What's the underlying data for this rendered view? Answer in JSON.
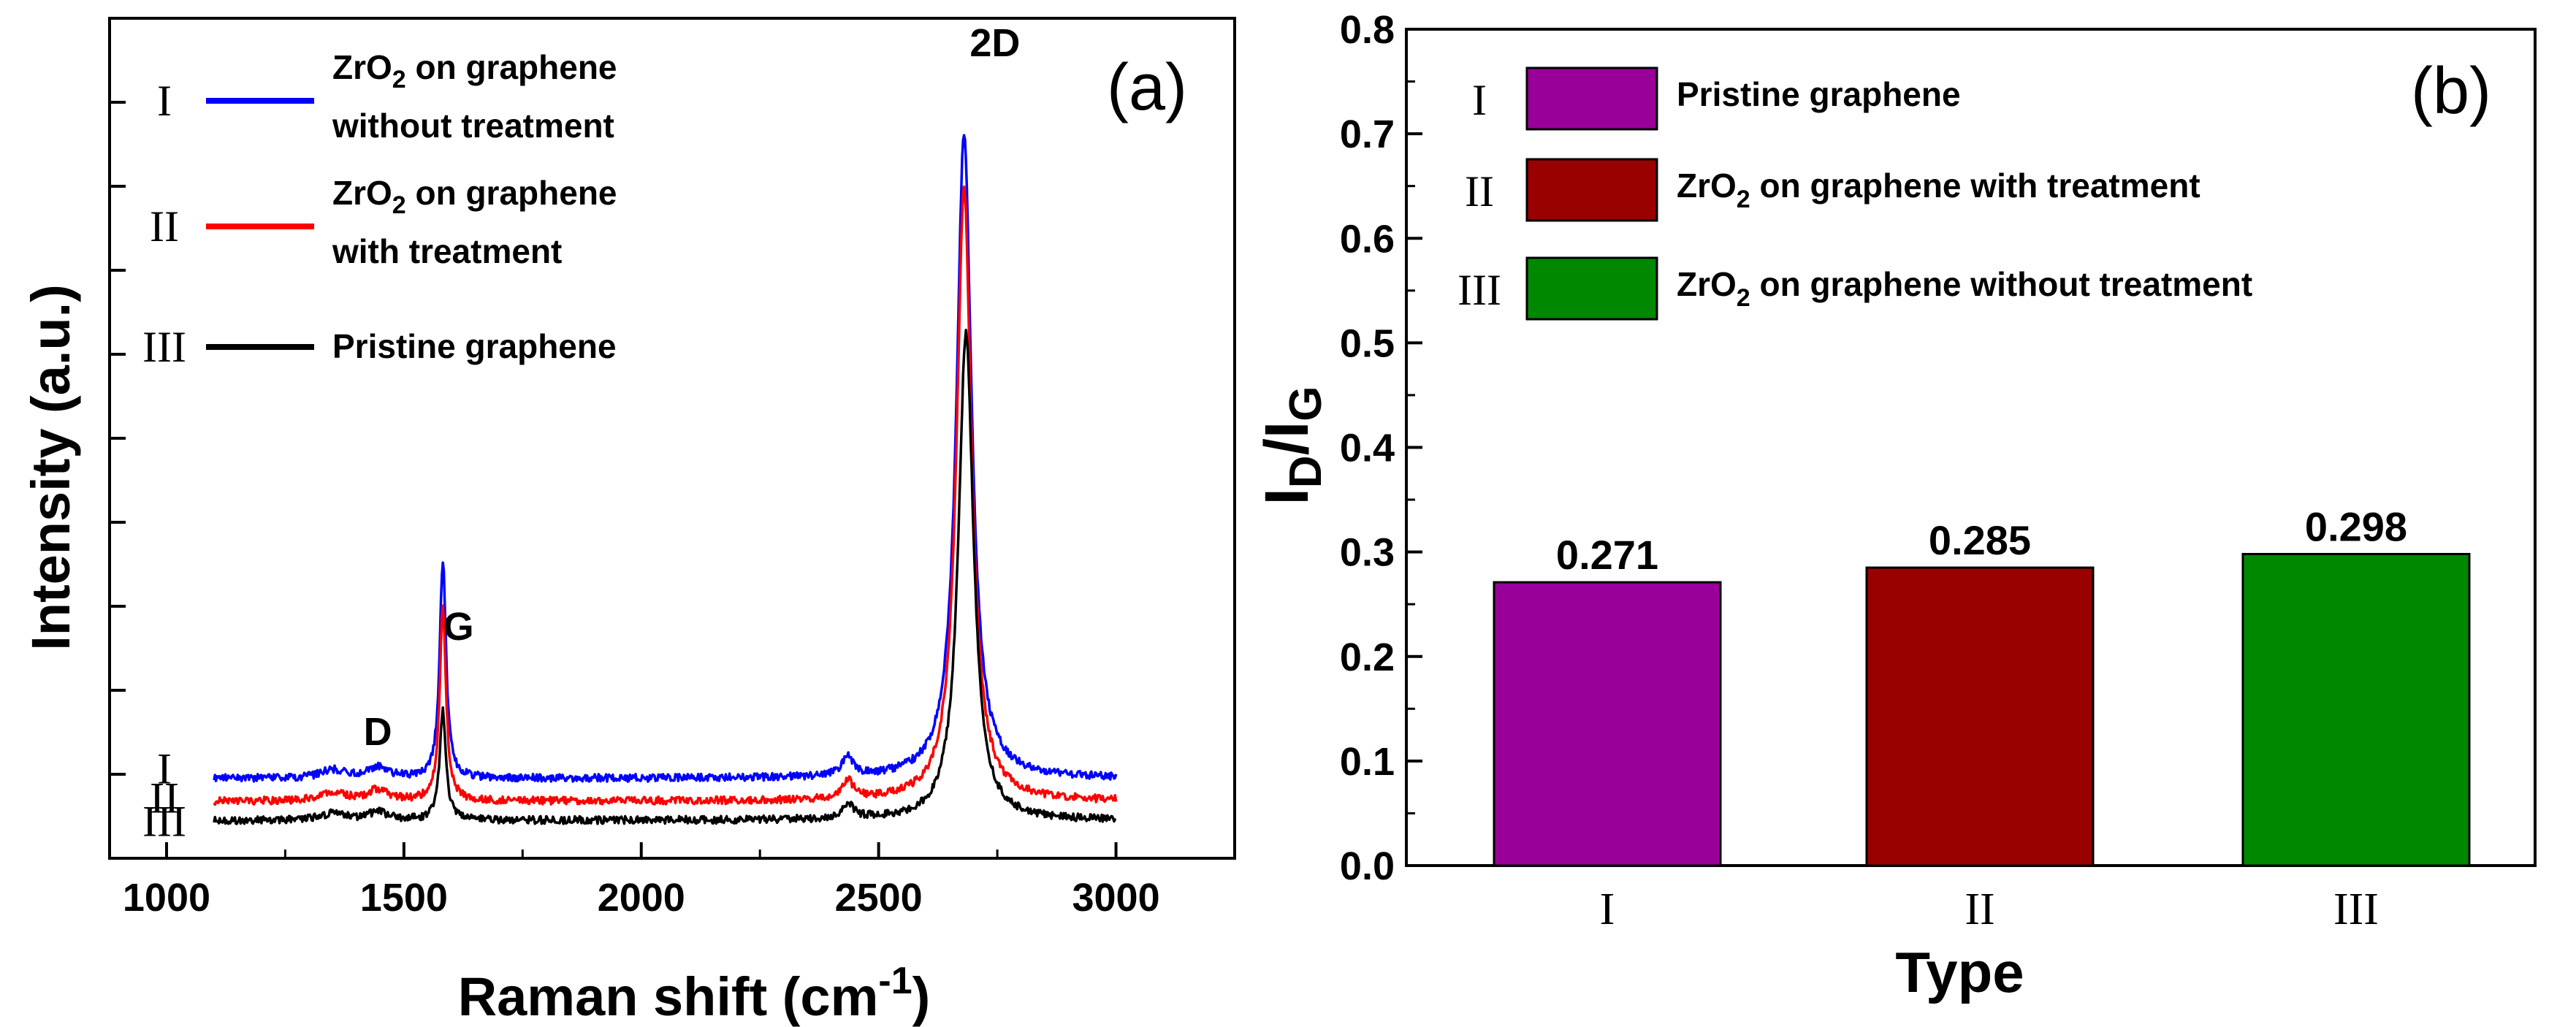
{
  "chart_data": [
    {
      "panel": "(a)",
      "type": "line",
      "xlabel_main": "Raman shift (cm",
      "xlabel_sup": "-1",
      "xlabel_close": ")",
      "ylabel": "Intensity (a.u.)",
      "xlim": [
        880,
        3250
      ],
      "ylim": [
        0,
        10
      ],
      "x_ticks": [
        1000,
        1500,
        2000,
        2500,
        3000
      ],
      "x_tick_labels": [
        "1000",
        "1500",
        "2000",
        "2500",
        "3000"
      ],
      "peak_labels": [
        {
          "text": "D",
          "x": 1445,
          "y": 1.35
        },
        {
          "text": "G",
          "x": 1615,
          "y": 2.6
        },
        {
          "text": "2D",
          "x": 2745,
          "y": 9.55
        }
      ],
      "curve_labels": [
        {
          "text": "I",
          "y": 1.05
        },
        {
          "text": "II",
          "y": 0.7
        },
        {
          "text": "III",
          "y": 0.42
        }
      ],
      "legend": [
        {
          "roman": "I",
          "line1_pre": "ZrO",
          "line1_sub": "2",
          "line1_post": " on graphene",
          "line2": "without treatment",
          "color": "#0000ff"
        },
        {
          "roman": "II",
          "line1_pre": "ZrO",
          "line1_sub": "2",
          "line1_post": " on graphene",
          "line2": "with treatment",
          "color": "#ff0000"
        },
        {
          "roman": "III",
          "line1_pre": "Pristine graphene",
          "line1_sub": "",
          "line1_post": "",
          "line2": "",
          "color": "#000000"
        }
      ],
      "series": [
        {
          "name": "ZrO2 on graphene without treatment",
          "roman": "I",
          "color": "#0000ff",
          "baseline": 0.95,
          "peaks": [
            [
              1350,
              0.1,
              60
            ],
            [
              1445,
              0.13,
              50
            ],
            [
              1582,
              2.6,
              16
            ],
            [
              2435,
              0.22,
              30
            ],
            [
              2680,
              7.7,
              38
            ]
          ]
        },
        {
          "name": "ZrO2 on graphene with treatment",
          "roman": "II",
          "color": "#ff0000",
          "baseline": 0.68,
          "peaks": [
            [
              1350,
              0.1,
              60
            ],
            [
              1445,
              0.13,
              50
            ],
            [
              1582,
              2.3,
              16
            ],
            [
              2435,
              0.22,
              30
            ],
            [
              2680,
              7.3,
              38
            ]
          ]
        },
        {
          "name": "Pristine graphene",
          "roman": "III",
          "color": "#000000",
          "baseline": 0.45,
          "peaks": [
            [
              1350,
              0.08,
              60
            ],
            [
              1445,
              0.1,
              50
            ],
            [
              1582,
              1.3,
              16
            ],
            [
              2435,
              0.18,
              30
            ],
            [
              2684,
              5.8,
              38
            ]
          ]
        }
      ],
      "x_range": [
        1100,
        3000
      ]
    },
    {
      "panel": "(b)",
      "type": "bar",
      "categories": [
        "I",
        "II",
        "III"
      ],
      "values": [
        0.271,
        0.285,
        0.298
      ],
      "value_labels": [
        "0.271",
        "0.285",
        "0.298"
      ],
      "colors": [
        "#990099",
        "#990000",
        "#008800"
      ],
      "ylim": [
        0,
        0.8
      ],
      "y_ticks": [
        0,
        0.1,
        0.2,
        0.3,
        0.4,
        0.5,
        0.6,
        0.7,
        0.8
      ],
      "y_tick_labels": [
        "0.0",
        "0.1",
        "0.2",
        "0.3",
        "0.4",
        "0.5",
        "0.6",
        "0.7",
        "0.8"
      ],
      "xlabel": "Type",
      "ylabel_main": "I",
      "ylabel_sub1": "D",
      "ylabel_slash": "/I",
      "ylabel_sub2": "G",
      "legend": [
        {
          "roman": "I",
          "pre": "Pristine graphene",
          "sub": "",
          "post": "",
          "color": "#990099"
        },
        {
          "roman": "II",
          "pre": "ZrO",
          "sub": "2",
          "post": " on graphene with treatment",
          "color": "#990000"
        },
        {
          "roman": "III",
          "pre": "ZrO",
          "sub": "2",
          "post": " on graphene  without treatment",
          "color": "#008800"
        }
      ]
    }
  ]
}
